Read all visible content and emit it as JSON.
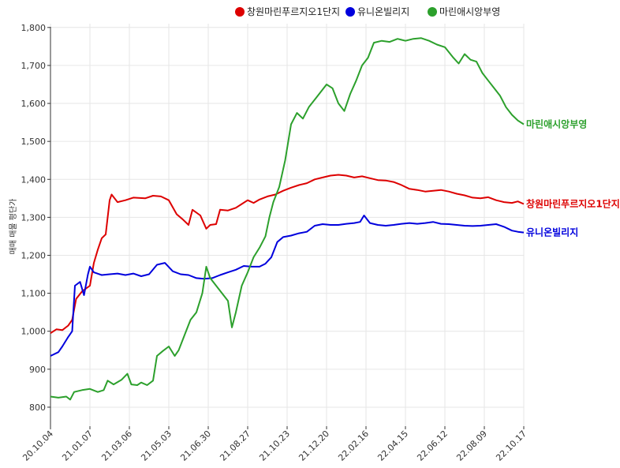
{
  "chart_data": {
    "type": "line",
    "title": "",
    "xlabel": "",
    "ylabel": "매매 매물 평단가",
    "ylim": [
      750,
      1810
    ],
    "yticks": [
      800,
      900,
      1000,
      1100,
      1200,
      1300,
      1400,
      1500,
      1600,
      1700,
      1800
    ],
    "ytick_labels": [
      "800",
      "900",
      "1,000",
      "1,100",
      "1,200",
      "1,300",
      "1,400",
      "1,500",
      "1,600",
      "1,700",
      "1,800"
    ],
    "x_ticks": [
      "20.10.04",
      "21.01.07",
      "21.03.06",
      "21.05.03",
      "21.06.30",
      "21.08.27",
      "21.10.23",
      "21.12.20",
      "22.02.16",
      "22.04.15",
      "22.06.12",
      "22.08.09",
      "22.10.17"
    ],
    "grid": true,
    "legend_position": "top-right",
    "series": [
      {
        "name": "창원마린푸르지오1단지",
        "end_label": "창원마린푸르지오1단지",
        "color": "#dd0000",
        "points": [
          [
            0,
            995
          ],
          [
            0.15,
            1005
          ],
          [
            0.3,
            1003
          ],
          [
            0.45,
            1015
          ],
          [
            0.55,
            1030
          ],
          [
            0.65,
            1085
          ],
          [
            0.8,
            1105
          ],
          [
            1.0,
            1120
          ],
          [
            1.1,
            1180
          ],
          [
            1.2,
            1215
          ],
          [
            1.3,
            1245
          ],
          [
            1.4,
            1255
          ],
          [
            1.5,
            1345
          ],
          [
            1.55,
            1360
          ],
          [
            1.7,
            1340
          ],
          [
            1.9,
            1345
          ],
          [
            2.1,
            1352
          ],
          [
            2.4,
            1350
          ],
          [
            2.6,
            1357
          ],
          [
            2.8,
            1355
          ],
          [
            3.0,
            1345
          ],
          [
            3.2,
            1308
          ],
          [
            3.35,
            1295
          ],
          [
            3.5,
            1280
          ],
          [
            3.6,
            1320
          ],
          [
            3.8,
            1305
          ],
          [
            3.95,
            1270
          ],
          [
            4.05,
            1280
          ],
          [
            4.2,
            1282
          ],
          [
            4.3,
            1320
          ],
          [
            4.5,
            1318
          ],
          [
            4.7,
            1325
          ],
          [
            4.85,
            1335
          ],
          [
            5.0,
            1345
          ],
          [
            5.15,
            1338
          ],
          [
            5.3,
            1347
          ],
          [
            5.5,
            1355
          ],
          [
            5.7,
            1360
          ],
          [
            5.9,
            1370
          ],
          [
            6.1,
            1378
          ],
          [
            6.3,
            1385
          ],
          [
            6.5,
            1390
          ],
          [
            6.7,
            1400
          ],
          [
            6.9,
            1405
          ],
          [
            7.1,
            1410
          ],
          [
            7.3,
            1412
          ],
          [
            7.5,
            1410
          ],
          [
            7.7,
            1405
          ],
          [
            7.9,
            1408
          ],
          [
            8.1,
            1403
          ],
          [
            8.3,
            1398
          ],
          [
            8.5,
            1397
          ],
          [
            8.7,
            1393
          ],
          [
            8.9,
            1385
          ],
          [
            9.1,
            1375
          ],
          [
            9.3,
            1372
          ],
          [
            9.5,
            1368
          ],
          [
            9.7,
            1370
          ],
          [
            9.9,
            1372
          ],
          [
            10.1,
            1368
          ],
          [
            10.3,
            1362
          ],
          [
            10.5,
            1358
          ],
          [
            10.7,
            1352
          ],
          [
            10.9,
            1350
          ],
          [
            11.1,
            1353
          ],
          [
            11.3,
            1345
          ],
          [
            11.5,
            1340
          ],
          [
            11.7,
            1338
          ],
          [
            11.85,
            1342
          ],
          [
            12.0,
            1335
          ]
        ]
      },
      {
        "name": "유니온빌리지",
        "end_label": "유니온빌리지",
        "color": "#0000dd",
        "points": [
          [
            0,
            935
          ],
          [
            0.2,
            945
          ],
          [
            0.3,
            960
          ],
          [
            0.45,
            985
          ],
          [
            0.55,
            1000
          ],
          [
            0.62,
            1120
          ],
          [
            0.75,
            1130
          ],
          [
            0.85,
            1095
          ],
          [
            0.95,
            1150
          ],
          [
            1.0,
            1170
          ],
          [
            1.1,
            1155
          ],
          [
            1.3,
            1148
          ],
          [
            1.5,
            1150
          ],
          [
            1.7,
            1152
          ],
          [
            1.9,
            1148
          ],
          [
            2.1,
            1152
          ],
          [
            2.3,
            1145
          ],
          [
            2.5,
            1150
          ],
          [
            2.7,
            1175
          ],
          [
            2.9,
            1180
          ],
          [
            3.1,
            1158
          ],
          [
            3.3,
            1150
          ],
          [
            3.5,
            1148
          ],
          [
            3.7,
            1140
          ],
          [
            3.9,
            1138
          ],
          [
            4.1,
            1140
          ],
          [
            4.3,
            1148
          ],
          [
            4.5,
            1155
          ],
          [
            4.7,
            1162
          ],
          [
            4.9,
            1172
          ],
          [
            5.1,
            1170
          ],
          [
            5.3,
            1170
          ],
          [
            5.45,
            1178
          ],
          [
            5.6,
            1195
          ],
          [
            5.75,
            1235
          ],
          [
            5.9,
            1248
          ],
          [
            6.1,
            1252
          ],
          [
            6.3,
            1258
          ],
          [
            6.5,
            1262
          ],
          [
            6.7,
            1278
          ],
          [
            6.9,
            1282
          ],
          [
            7.1,
            1280
          ],
          [
            7.3,
            1280
          ],
          [
            7.5,
            1283
          ],
          [
            7.7,
            1285
          ],
          [
            7.85,
            1288
          ],
          [
            7.95,
            1305
          ],
          [
            8.1,
            1285
          ],
          [
            8.3,
            1280
          ],
          [
            8.5,
            1278
          ],
          [
            8.7,
            1280
          ],
          [
            8.9,
            1283
          ],
          [
            9.1,
            1285
          ],
          [
            9.3,
            1283
          ],
          [
            9.5,
            1285
          ],
          [
            9.7,
            1288
          ],
          [
            9.9,
            1283
          ],
          [
            10.1,
            1282
          ],
          [
            10.3,
            1280
          ],
          [
            10.5,
            1278
          ],
          [
            10.7,
            1277
          ],
          [
            10.9,
            1278
          ],
          [
            11.1,
            1280
          ],
          [
            11.3,
            1282
          ],
          [
            11.5,
            1275
          ],
          [
            11.7,
            1265
          ],
          [
            11.85,
            1262
          ],
          [
            12.0,
            1260
          ]
        ]
      },
      {
        "name": "마린애시앙부영",
        "end_label": "마린애시앙부영",
        "color": "#2ca02c",
        "points": [
          [
            0,
            828
          ],
          [
            0.2,
            825
          ],
          [
            0.4,
            828
          ],
          [
            0.5,
            820
          ],
          [
            0.6,
            840
          ],
          [
            0.8,
            845
          ],
          [
            1.0,
            848
          ],
          [
            1.2,
            840
          ],
          [
            1.35,
            845
          ],
          [
            1.45,
            870
          ],
          [
            1.6,
            860
          ],
          [
            1.8,
            872
          ],
          [
            1.95,
            888
          ],
          [
            2.05,
            860
          ],
          [
            2.2,
            858
          ],
          [
            2.3,
            865
          ],
          [
            2.45,
            858
          ],
          [
            2.6,
            870
          ],
          [
            2.7,
            935
          ],
          [
            2.85,
            948
          ],
          [
            3.0,
            960
          ],
          [
            3.15,
            935
          ],
          [
            3.25,
            950
          ],
          [
            3.4,
            990
          ],
          [
            3.55,
            1030
          ],
          [
            3.7,
            1050
          ],
          [
            3.85,
            1100
          ],
          [
            3.95,
            1170
          ],
          [
            4.05,
            1140
          ],
          [
            4.2,
            1120
          ],
          [
            4.35,
            1100
          ],
          [
            4.5,
            1080
          ],
          [
            4.6,
            1010
          ],
          [
            4.7,
            1050
          ],
          [
            4.85,
            1120
          ],
          [
            5.0,
            1155
          ],
          [
            5.15,
            1195
          ],
          [
            5.3,
            1220
          ],
          [
            5.45,
            1250
          ],
          [
            5.55,
            1300
          ],
          [
            5.65,
            1340
          ],
          [
            5.8,
            1380
          ],
          [
            5.95,
            1450
          ],
          [
            6.1,
            1545
          ],
          [
            6.25,
            1575
          ],
          [
            6.4,
            1560
          ],
          [
            6.55,
            1590
          ],
          [
            6.7,
            1610
          ],
          [
            6.85,
            1630
          ],
          [
            7.0,
            1650
          ],
          [
            7.15,
            1640
          ],
          [
            7.3,
            1600
          ],
          [
            7.45,
            1580
          ],
          [
            7.6,
            1625
          ],
          [
            7.75,
            1660
          ],
          [
            7.9,
            1700
          ],
          [
            8.05,
            1720
          ],
          [
            8.2,
            1760
          ],
          [
            8.4,
            1765
          ],
          [
            8.6,
            1762
          ],
          [
            8.8,
            1770
          ],
          [
            9.0,
            1765
          ],
          [
            9.2,
            1770
          ],
          [
            9.4,
            1772
          ],
          [
            9.6,
            1765
          ],
          [
            9.8,
            1755
          ],
          [
            10.0,
            1748
          ],
          [
            10.2,
            1722
          ],
          [
            10.35,
            1705
          ],
          [
            10.5,
            1730
          ],
          [
            10.65,
            1715
          ],
          [
            10.8,
            1710
          ],
          [
            10.95,
            1680
          ],
          [
            11.1,
            1660
          ],
          [
            11.25,
            1640
          ],
          [
            11.4,
            1620
          ],
          [
            11.55,
            1590
          ],
          [
            11.7,
            1570
          ],
          [
            11.85,
            1555
          ],
          [
            12.0,
            1545
          ]
        ]
      }
    ]
  }
}
